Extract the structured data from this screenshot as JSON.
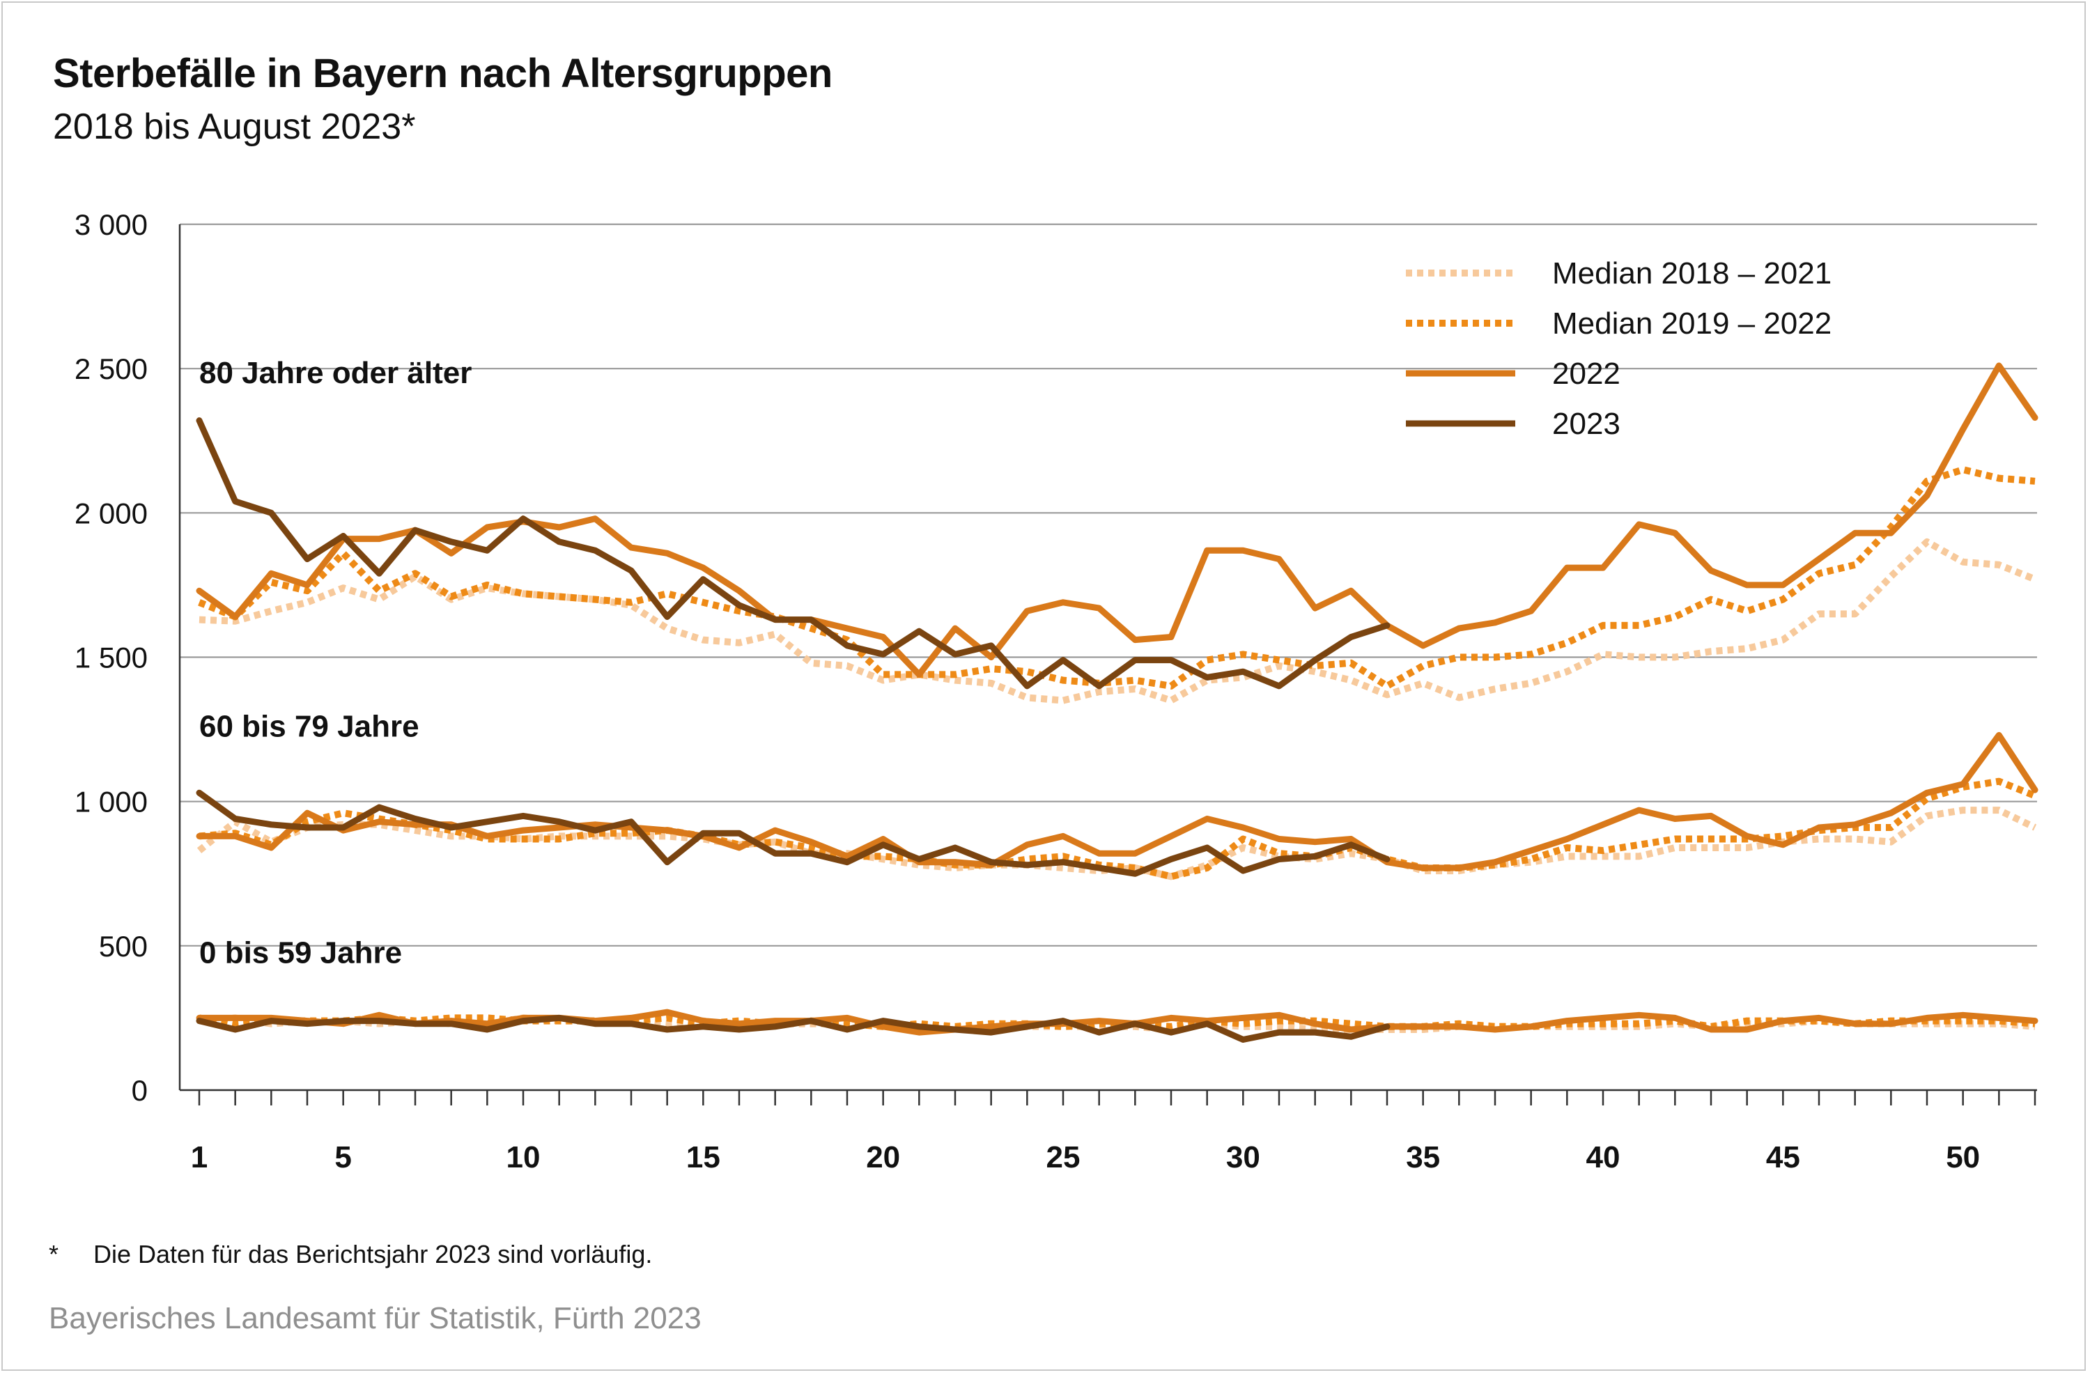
{
  "header": {
    "title": "Sterbefälle in Bayern nach Altersgruppen",
    "subtitle": "2018 bis August 2023*"
  },
  "footer": {
    "footnote_mark": "*",
    "footnote": "Die Daten für das Berichtsjahr 2023 sind vorläufig.",
    "source": "Bayerisches Landesamt für Statistik, Fürth 2023"
  },
  "chart_data": {
    "type": "line",
    "ylim": [
      0,
      3000
    ],
    "xlim": [
      1,
      52
    ],
    "y_ticks": [
      {
        "value": 0,
        "label": "0"
      },
      {
        "value": 500,
        "label": "500"
      },
      {
        "value": 1000,
        "label": "1 000"
      },
      {
        "value": 1500,
        "label": "1 500"
      },
      {
        "value": 2000,
        "label": "2 000"
      },
      {
        "value": 2500,
        "label": "2 500"
      },
      {
        "value": 3000,
        "label": "3 000"
      }
    ],
    "x_ticks": [
      {
        "value": 1,
        "label": "1"
      },
      {
        "value": 5,
        "label": "5"
      },
      {
        "value": 10,
        "label": "10"
      },
      {
        "value": 15,
        "label": "15"
      },
      {
        "value": 20,
        "label": "20"
      },
      {
        "value": 25,
        "label": "25"
      },
      {
        "value": 30,
        "label": "30"
      },
      {
        "value": 35,
        "label": "35"
      },
      {
        "value": 40,
        "label": "40"
      },
      {
        "value": 45,
        "label": "45"
      },
      {
        "value": 50,
        "label": "50"
      }
    ],
    "grid": "horizontal",
    "legend_position": "top-right",
    "legend": [
      {
        "series": "median1821",
        "label": "Median 2018 – 2021",
        "color": "#f7c99b",
        "style": "dotted"
      },
      {
        "series": "median1922",
        "label": "Median 2019 – 2022",
        "color": "#ee8a16",
        "style": "dotted"
      },
      {
        "series": "y2022",
        "label": "2022",
        "color": "#d9791a",
        "style": "solid"
      },
      {
        "series": "y2023",
        "label": "2023",
        "color": "#7a4410",
        "style": "solid"
      }
    ],
    "groups": [
      {
        "label": "80 Jahre oder älter",
        "label_anchor": {
          "x": 1,
          "y": 2450
        },
        "series": {
          "median1821": [
            1630,
            1625,
            1660,
            1690,
            1740,
            1700,
            1780,
            1700,
            1740,
            1720,
            1710,
            1700,
            1680,
            1600,
            1560,
            1550,
            1580,
            1480,
            1470,
            1420,
            1440,
            1420,
            1410,
            1360,
            1350,
            1380,
            1390,
            1350,
            1420,
            1430,
            1470,
            1450,
            1420,
            1370,
            1410,
            1360,
            1390,
            1410,
            1450,
            1510,
            1500,
            1500,
            1520,
            1530,
            1560,
            1650,
            1650,
            1780,
            1900,
            1830,
            1820,
            1770
          ],
          "median1922": [
            1690,
            1640,
            1760,
            1730,
            1860,
            1730,
            1790,
            1710,
            1750,
            1720,
            1710,
            1700,
            1690,
            1720,
            1690,
            1660,
            1640,
            1600,
            1560,
            1440,
            1440,
            1440,
            1460,
            1450,
            1420,
            1410,
            1420,
            1400,
            1490,
            1510,
            1490,
            1470,
            1480,
            1400,
            1470,
            1500,
            1500,
            1510,
            1550,
            1610,
            1610,
            1640,
            1700,
            1660,
            1700,
            1790,
            1820,
            1950,
            2110,
            2150,
            2120,
            2110
          ],
          "y2022": [
            1730,
            1640,
            1790,
            1750,
            1910,
            1910,
            1940,
            1860,
            1950,
            1970,
            1950,
            1980,
            1880,
            1860,
            1810,
            1730,
            1630,
            1630,
            1600,
            1570,
            1440,
            1600,
            1500,
            1660,
            1690,
            1670,
            1560,
            1570,
            1870,
            1870,
            1840,
            1670,
            1730,
            1610,
            1540,
            1600,
            1620,
            1660,
            1810,
            1810,
            1960,
            1930,
            1800,
            1750,
            1750,
            1840,
            1930,
            1930,
            2060,
            2290,
            2510,
            2330
          ],
          "y2023": [
            2320,
            2040,
            2000,
            1840,
            1920,
            1790,
            1940,
            1900,
            1870,
            1980,
            1900,
            1870,
            1800,
            1640,
            1770,
            1680,
            1630,
            1630,
            1540,
            1510,
            1590,
            1510,
            1540,
            1400,
            1490,
            1400,
            1490,
            1490,
            1430,
            1450,
            1400,
            1490,
            1570,
            1610
          ]
        }
      },
      {
        "label": "60 bis 79 Jahre",
        "label_anchor": {
          "x": 1,
          "y": 1225
        },
        "series": {
          "median1821": [
            830,
            930,
            860,
            910,
            920,
            920,
            900,
            880,
            880,
            870,
            880,
            880,
            880,
            880,
            870,
            850,
            860,
            820,
            820,
            800,
            780,
            770,
            780,
            780,
            770,
            760,
            770,
            740,
            780,
            840,
            810,
            800,
            820,
            800,
            760,
            760,
            780,
            790,
            810,
            810,
            810,
            840,
            840,
            840,
            860,
            870,
            870,
            860,
            950,
            970,
            970,
            910
          ],
          "median1922": [
            880,
            890,
            850,
            930,
            960,
            940,
            920,
            900,
            870,
            870,
            870,
            890,
            890,
            900,
            880,
            850,
            860,
            840,
            810,
            810,
            800,
            780,
            780,
            800,
            810,
            780,
            770,
            740,
            770,
            870,
            820,
            810,
            840,
            800,
            770,
            770,
            780,
            800,
            840,
            830,
            850,
            870,
            870,
            870,
            880,
            900,
            910,
            910,
            1010,
            1050,
            1070,
            1020
          ],
          "y2022": [
            880,
            880,
            840,
            960,
            900,
            930,
            920,
            920,
            880,
            900,
            910,
            920,
            910,
            900,
            880,
            840,
            900,
            860,
            810,
            870,
            790,
            790,
            780,
            850,
            880,
            820,
            820,
            880,
            940,
            910,
            870,
            860,
            870,
            790,
            770,
            770,
            790,
            830,
            870,
            920,
            970,
            940,
            950,
            880,
            850,
            910,
            920,
            960,
            1030,
            1060,
            1230,
            1040
          ],
          "y2023": [
            1030,
            940,
            920,
            910,
            910,
            980,
            940,
            910,
            930,
            950,
            930,
            900,
            930,
            790,
            890,
            890,
            820,
            820,
            790,
            850,
            800,
            840,
            790,
            780,
            790,
            770,
            750,
            800,
            840,
            760,
            800,
            810,
            850,
            800
          ]
        }
      },
      {
        "label": "0 bis 59 Jahre",
        "label_anchor": {
          "x": 1,
          "y": 440
        },
        "series": {
          "median1821": [
            240,
            250,
            230,
            240,
            240,
            230,
            240,
            230,
            230,
            250,
            240,
            240,
            240,
            230,
            240,
            220,
            230,
            230,
            230,
            220,
            220,
            220,
            210,
            220,
            220,
            220,
            220,
            210,
            230,
            220,
            220,
            210,
            210,
            210,
            210,
            220,
            220,
            220,
            220,
            220,
            220,
            230,
            220,
            230,
            230,
            240,
            230,
            230,
            230,
            230,
            230,
            220
          ],
          "median1922": [
            250,
            230,
            240,
            240,
            240,
            250,
            240,
            250,
            250,
            240,
            240,
            240,
            240,
            250,
            230,
            240,
            230,
            240,
            230,
            220,
            230,
            220,
            230,
            230,
            220,
            230,
            230,
            220,
            240,
            230,
            240,
            240,
            230,
            220,
            220,
            230,
            220,
            220,
            230,
            230,
            230,
            240,
            220,
            240,
            240,
            240,
            230,
            240,
            240,
            240,
            240,
            230
          ],
          "y2022": [
            250,
            250,
            250,
            240,
            230,
            260,
            230,
            240,
            230,
            250,
            250,
            240,
            250,
            270,
            240,
            230,
            240,
            240,
            250,
            220,
            200,
            210,
            220,
            230,
            230,
            240,
            230,
            250,
            240,
            250,
            260,
            230,
            210,
            220,
            220,
            220,
            210,
            220,
            240,
            250,
            260,
            250,
            210,
            210,
            240,
            250,
            230,
            230,
            250,
            260,
            250,
            240
          ],
          "y2023": [
            240,
            210,
            240,
            230,
            240,
            240,
            230,
            230,
            210,
            240,
            250,
            230,
            230,
            210,
            220,
            210,
            220,
            240,
            210,
            240,
            220,
            210,
            200,
            220,
            240,
            200,
            230,
            200,
            230,
            175,
            200,
            200,
            185,
            220
          ]
        }
      }
    ]
  }
}
